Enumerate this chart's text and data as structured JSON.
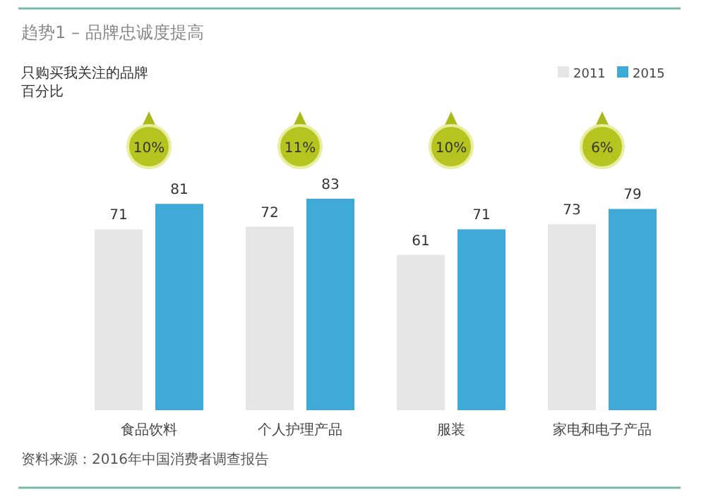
{
  "chart_data": {
    "type": "bar",
    "title": "趋势1 – 品牌忠诚度提高",
    "subtitle": "只购买我关注的品牌",
    "categories": [
      "食品饮料",
      "个人护理产品",
      "服装",
      "家电和电子产品"
    ],
    "series": [
      {
        "name": "2011",
        "color": "#e6e6e6",
        "values": [
          71,
          72,
          61,
          73
        ]
      },
      {
        "name": "2015",
        "color": "#3fa9d8",
        "values": [
          81,
          83,
          71,
          79
        ]
      }
    ],
    "data_labels": true,
    "legend": "top right",
    "annotations": [
      "10%",
      "11%",
      "10%",
      "6%",
      "百分比",
      "资料来源：2016年中国消费者调查报告"
    ]
  }
}
